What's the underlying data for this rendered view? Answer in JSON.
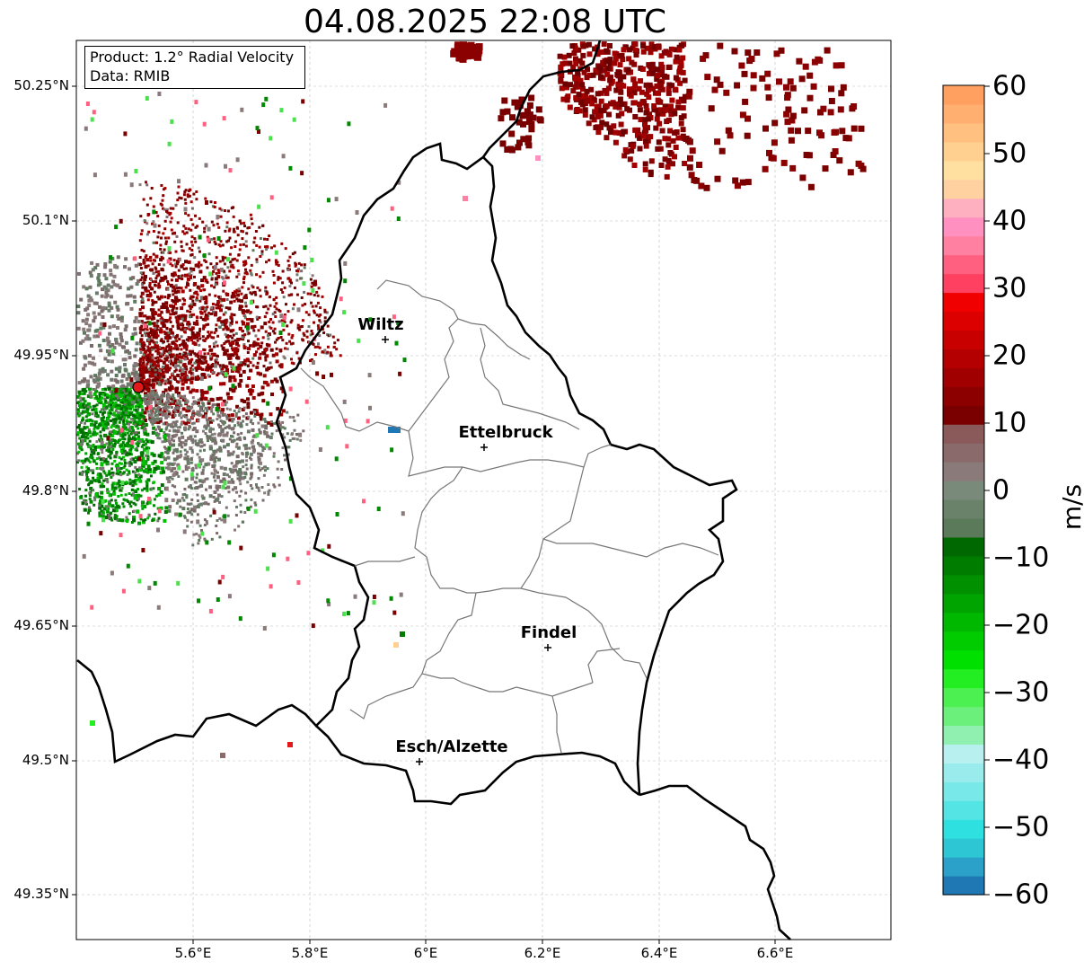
{
  "title": "04.08.2025 22:08 UTC",
  "info": {
    "product": "Product: 1.2° Radial Velocity",
    "data": "Data: RMIB"
  },
  "lat_labels": [
    "50.25°N",
    "50.1°N",
    "49.95°N",
    "49.8°N",
    "49.65°N",
    "49.5°N",
    "49.35°N"
  ],
  "lon_labels": [
    "5.6°E",
    "5.8°E",
    "6°E",
    "6.2°E",
    "6.4°E",
    "6.6°E"
  ],
  "cities": [
    {
      "name": "Wiltz"
    },
    {
      "name": "Ettelbruck"
    },
    {
      "name": "Findel"
    },
    {
      "name": "Esch/Alzette"
    }
  ],
  "colorbar": {
    "unit": "m/s",
    "ticks": [
      "60",
      "50",
      "40",
      "30",
      "20",
      "10",
      "0",
      "−10",
      "−20",
      "−30",
      "−40",
      "−50",
      "−60"
    ],
    "range": [
      -60,
      60
    ],
    "colors": [
      "#1f77b4",
      "#2ba0c8",
      "#2cc6d4",
      "#2ee0e0",
      "#55e4e4",
      "#78e8e8",
      "#9aecec",
      "#b8f0f0",
      "#90f0b0",
      "#6cf07c",
      "#4cf050",
      "#22ee22",
      "#00e000",
      "#00cc00",
      "#00b800",
      "#00a400",
      "#009000",
      "#007c00",
      "#006800",
      "#5a7a5a",
      "#6a826a",
      "#7a8a7a",
      "#8a7a7a",
      "#8a6a6a",
      "#8a5a5a",
      "#7a0000",
      "#8c0000",
      "#a00000",
      "#b40000",
      "#c80000",
      "#dc0000",
      "#f00000",
      "#ff4060",
      "#ff6080",
      "#ff80a0",
      "#ff90c0",
      "#ffb0c0",
      "#ffd0a0",
      "#ffe0a0",
      "#ffd090",
      "#ffc080",
      "#ffb070",
      "#ffa060"
    ]
  },
  "radar_colors": {
    "outbound": "#8b0000",
    "inbound": "#007a00",
    "neutral": "#7a7a7a"
  }
}
